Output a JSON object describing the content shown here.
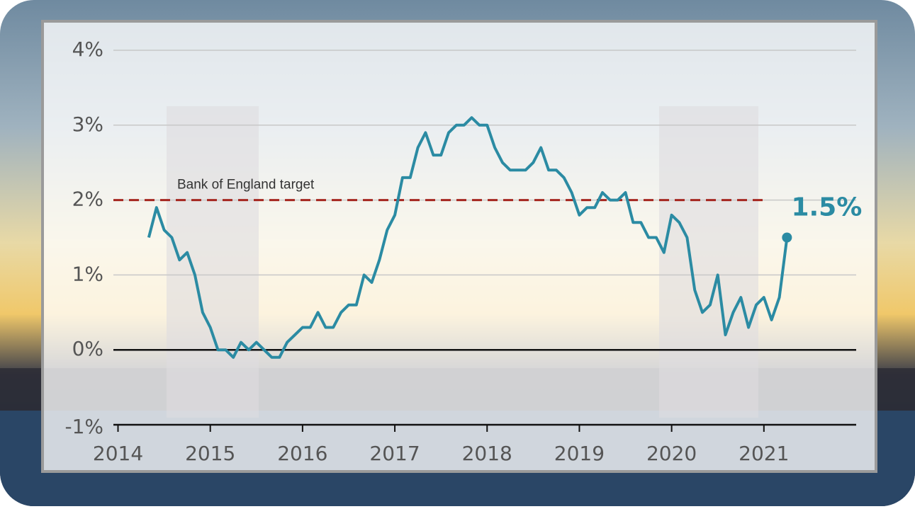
{
  "chart_data": {
    "type": "line",
    "x": [
      2014.333,
      2014.417,
      2014.5,
      2014.583,
      2014.667,
      2014.75,
      2014.833,
      2014.917,
      2015,
      2015.083,
      2015.167,
      2015.25,
      2015.333,
      2015.417,
      2015.5,
      2015.583,
      2015.667,
      2015.75,
      2015.833,
      2015.917,
      2016,
      2016.083,
      2016.167,
      2016.25,
      2016.333,
      2016.417,
      2016.5,
      2016.583,
      2016.667,
      2016.75,
      2016.833,
      2016.917,
      2017,
      2017.083,
      2017.167,
      2017.25,
      2017.333,
      2017.417,
      2017.5,
      2017.583,
      2017.667,
      2017.75,
      2017.833,
      2017.917,
      2018,
      2018.083,
      2018.167,
      2018.25,
      2018.333,
      2018.417,
      2018.5,
      2018.583,
      2018.667,
      2018.75,
      2018.833,
      2018.917,
      2019,
      2019.083,
      2019.167,
      2019.25,
      2019.333,
      2019.417,
      2019.5,
      2019.583,
      2019.667,
      2019.75,
      2019.833,
      2019.917,
      2020,
      2020.083,
      2020.167,
      2020.25,
      2020.333,
      2020.417,
      2020.5,
      2020.583,
      2020.667,
      2020.75,
      2020.833,
      2020.917,
      2021,
      2021.083,
      2021.167,
      2021.25
    ],
    "series": [
      {
        "color": "#2b8ba3",
        "values": [
          1.5,
          1.9,
          1.6,
          1.5,
          1.2,
          1.3,
          1.0,
          0.5,
          0.3,
          0.0,
          0.0,
          -0.1,
          0.1,
          0.0,
          0.1,
          0.0,
          -0.1,
          -0.1,
          0.1,
          0.2,
          0.3,
          0.3,
          0.5,
          0.3,
          0.3,
          0.5,
          0.6,
          0.6,
          1.0,
          0.9,
          1.2,
          1.6,
          1.8,
          2.3,
          2.3,
          2.7,
          2.9,
          2.6,
          2.6,
          2.9,
          3.0,
          3.0,
          3.1,
          3.0,
          3.0,
          2.7,
          2.5,
          2.4,
          2.4,
          2.4,
          2.5,
          2.7,
          2.4,
          2.4,
          2.3,
          2.1,
          1.8,
          1.9,
          1.9,
          2.1,
          2.0,
          2.0,
          2.1,
          1.7,
          1.7,
          1.5,
          1.5,
          1.3,
          1.8,
          1.7,
          1.5,
          0.8,
          0.5,
          0.6,
          1.0,
          0.2,
          0.5,
          0.7,
          0.3,
          0.6,
          0.7,
          0.4,
          0.7,
          1.5
        ]
      }
    ],
    "last_value_label": "1.5%",
    "target": {
      "value": 2,
      "label": "Bank of England target",
      "color": "#a5261f"
    },
    "xlim": [
      2013.95,
      2022
    ],
    "xticks": [
      2014,
      2015,
      2016,
      2017,
      2018,
      2019,
      2020,
      2021
    ],
    "ylim": [
      -1,
      4
    ],
    "yticks": [
      {
        "value": -1,
        "label": "-1%"
      },
      {
        "value": 0,
        "label": "0%"
      },
      {
        "value": 1,
        "label": "1%"
      },
      {
        "value": 2,
        "label": "2%"
      },
      {
        "value": 3,
        "label": "3%"
      },
      {
        "value": 4,
        "label": "4%"
      }
    ],
    "grid": true
  }
}
